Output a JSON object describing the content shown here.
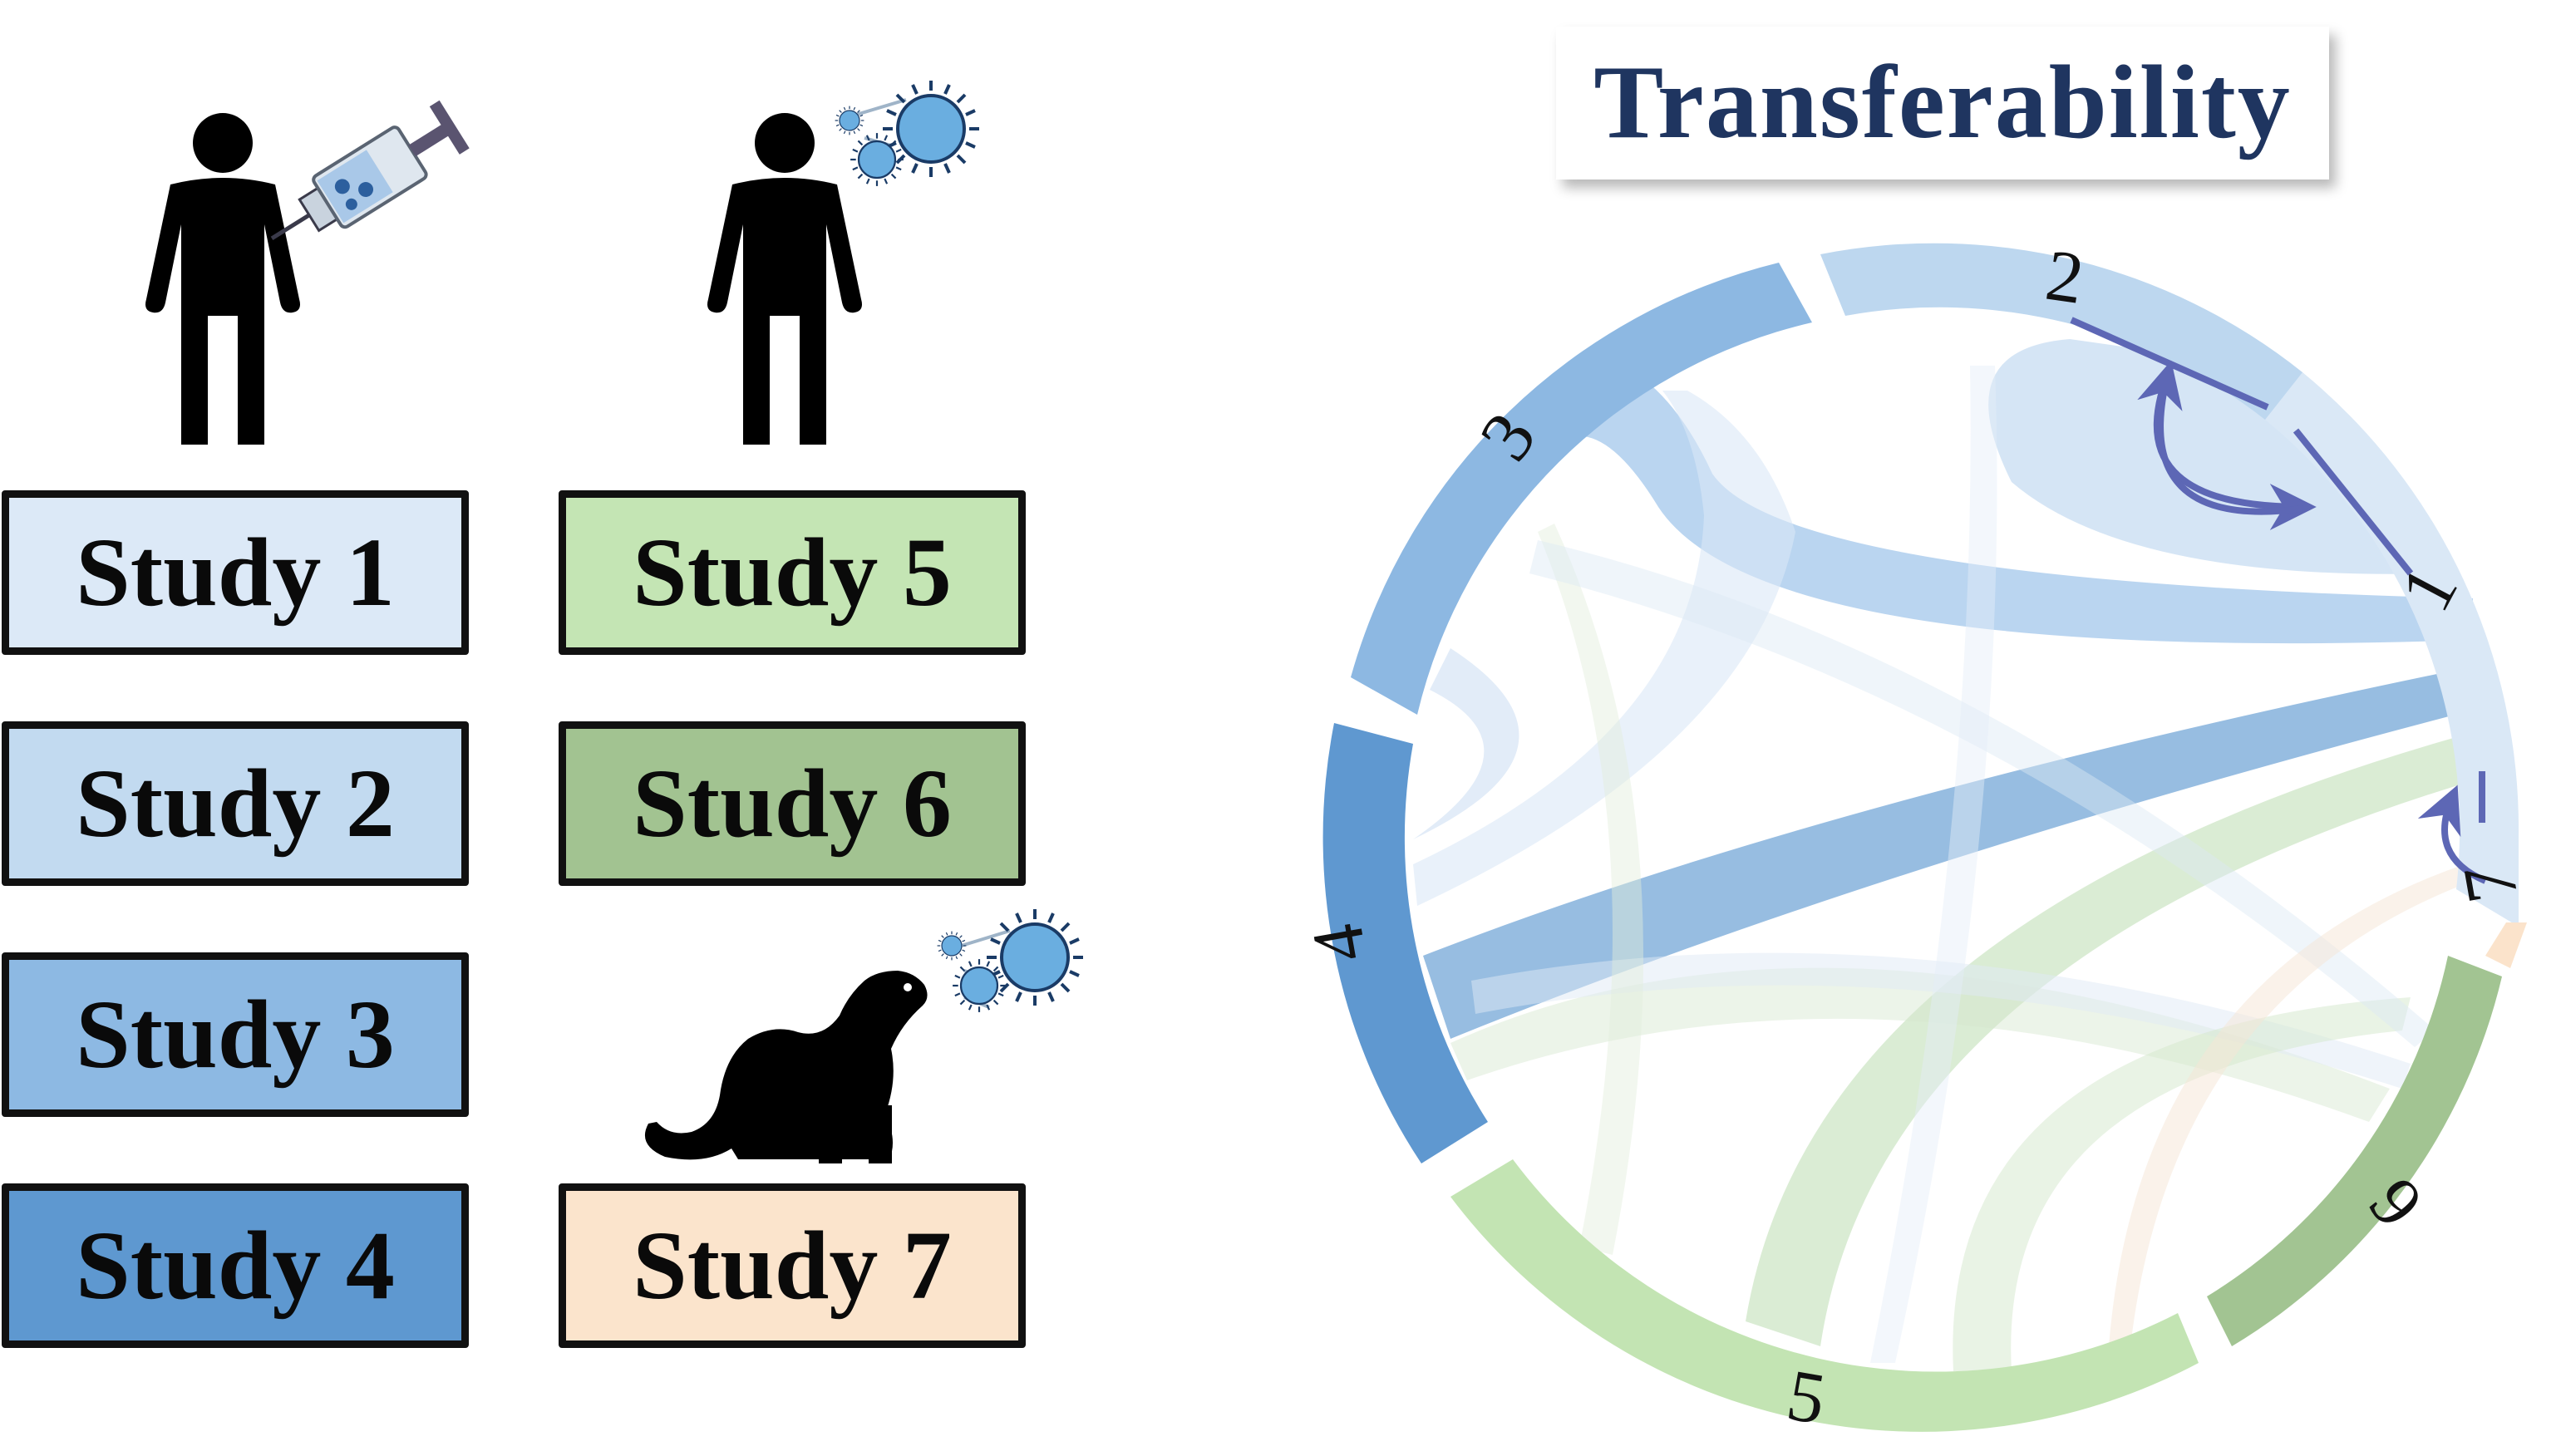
{
  "title": "Transferability",
  "studies": [
    {
      "label": "Study 1",
      "color": "#dce9f7"
    },
    {
      "label": "Study 2",
      "color": "#c2daf0"
    },
    {
      "label": "Study 3",
      "color": "#8db9e3"
    },
    {
      "label": "Study 4",
      "color": "#5e98d0"
    },
    {
      "label": "Study 5",
      "color": "#c4e5b4"
    },
    {
      "label": "Study 6",
      "color": "#a2c391"
    },
    {
      "label": "Study 7",
      "color": "#fbe4cc"
    }
  ],
  "chord": {
    "segment_labels": [
      "1",
      "2",
      "3",
      "4",
      "5",
      "6",
      "7"
    ],
    "segment_colors": [
      "#dae8f6",
      "#bdd7ef",
      "#8db8e2",
      "#5f98d0",
      "#c3e4b3",
      "#a2c492",
      "#fbe3cb"
    ],
    "arrow_color": "#5d67b5"
  },
  "icons": [
    "person-icon",
    "syringe-icon",
    "virus-icon",
    "ferret-icon"
  ]
}
